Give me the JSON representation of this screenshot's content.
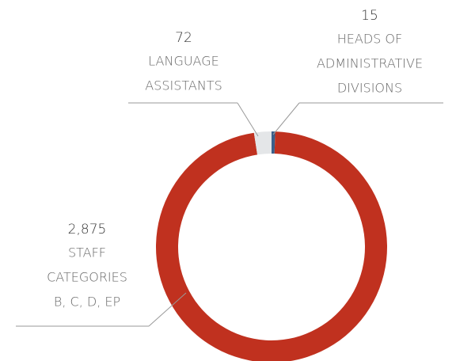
{
  "chart_data": {
    "type": "donut",
    "values": [
      15,
      2875,
      72
    ],
    "value_labels": [
      "15",
      "2,875",
      "72"
    ],
    "labels": [
      [
        "HEADS OF",
        "ADMINISTRATIVE",
        "DIVISIONS"
      ],
      [
        "STAFF",
        "CATEGORIES",
        "B, C, D, EP"
      ],
      [
        "LANGUAGE",
        "ASSISTANTS"
      ]
    ],
    "colors": [
      "#3a5f8a",
      "#c0311f",
      "#e4e6e8"
    ]
  }
}
